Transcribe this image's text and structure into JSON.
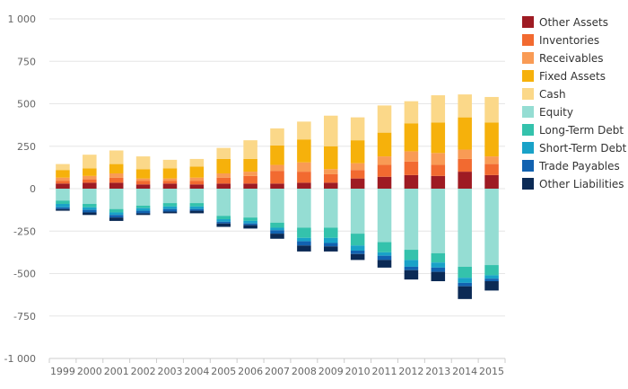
{
  "chart_data": {
    "type": "bar",
    "stacked": true,
    "title": "",
    "xlabel": "",
    "ylabel": "",
    "ylim": [
      -1000,
      1000
    ],
    "yticks": [
      -1000,
      -750,
      -500,
      -250,
      0,
      250,
      500,
      750,
      1000
    ],
    "ytick_labels": [
      "-1 000",
      "-750",
      "-500",
      "-250",
      "0",
      "250",
      "500",
      "750",
      "1 000"
    ],
    "grid": true,
    "legend_position": "right",
    "categories": [
      "1999",
      "2000",
      "2001",
      "2002",
      "2003",
      "2004",
      "2005",
      "2006",
      "2007",
      "2008",
      "2009",
      "2010",
      "2011",
      "2012",
      "2013",
      "2014",
      "2015"
    ],
    "series": [
      {
        "name": "Other Assets",
        "color": "#9e1b23",
        "values": [
          30,
          35,
          35,
          25,
          30,
          25,
          30,
          30,
          30,
          35,
          35,
          60,
          70,
          80,
          75,
          100,
          80
        ]
      },
      {
        "name": "Inventories",
        "color": "#f26a30",
        "values": [
          15,
          20,
          30,
          20,
          15,
          20,
          35,
          45,
          75,
          65,
          50,
          50,
          70,
          80,
          65,
          75,
          65
        ]
      },
      {
        "name": "Receivables",
        "color": "#f99b55",
        "values": [
          20,
          20,
          25,
          15,
          15,
          20,
          25,
          25,
          35,
          55,
          30,
          40,
          50,
          60,
          70,
          55,
          45
        ]
      },
      {
        "name": "Fixed Assets",
        "color": "#f6b10b",
        "values": [
          45,
          45,
          55,
          55,
          60,
          65,
          85,
          75,
          115,
          135,
          135,
          135,
          140,
          165,
          180,
          190,
          200
        ]
      },
      {
        "name": "Cash",
        "color": "#fbd889",
        "values": [
          35,
          80,
          80,
          75,
          50,
          45,
          65,
          110,
          100,
          105,
          180,
          135,
          160,
          130,
          160,
          135,
          150
        ]
      },
      {
        "name": "Equity",
        "color": "#95ddd3",
        "values": [
          -70,
          -90,
          -120,
          -100,
          -85,
          -85,
          -160,
          -170,
          -200,
          -230,
          -230,
          -265,
          -315,
          -360,
          -380,
          -460,
          -450
        ]
      },
      {
        "name": "Long-Term Debt",
        "color": "#34c2ac",
        "values": [
          -20,
          -20,
          -20,
          -15,
          -20,
          -20,
          -20,
          -20,
          -30,
          -60,
          -60,
          -70,
          -60,
          -60,
          -55,
          -65,
          -60
        ]
      },
      {
        "name": "Short-Term Debt",
        "color": "#19a2c8",
        "values": [
          -20,
          -15,
          -15,
          -15,
          -15,
          -15,
          -15,
          -15,
          -15,
          -20,
          -30,
          -30,
          -20,
          -40,
          -30,
          -30,
          -20
        ]
      },
      {
        "name": "Trade Payables",
        "color": "#1262b0",
        "values": [
          -10,
          -15,
          -15,
          -15,
          -15,
          -10,
          -10,
          -10,
          -20,
          -25,
          -20,
          -20,
          -25,
          -20,
          -25,
          -20,
          -15
        ]
      },
      {
        "name": "Other Liabilities",
        "color": "#0b2a55",
        "values": [
          -10,
          -15,
          -20,
          -10,
          -10,
          -15,
          -20,
          -20,
          -30,
          -35,
          -30,
          -35,
          -45,
          -55,
          -55,
          -75,
          -55
        ]
      }
    ]
  }
}
